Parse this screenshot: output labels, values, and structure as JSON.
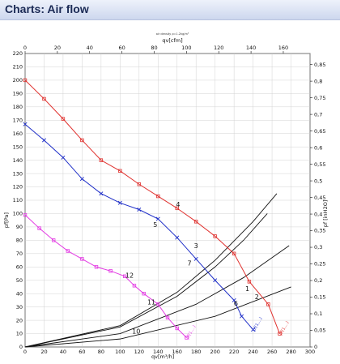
{
  "header": {
    "title": "Charts: Air flow"
  },
  "chart_data": {
    "type": "line",
    "note": "air density ρ=1.2kg/m³",
    "x_top_label": "qv[cfm]",
    "x_top_ticks": [
      0,
      20,
      40,
      60,
      80,
      100,
      120,
      140,
      160
    ],
    "x_bottom_label": "qv[m³/h]",
    "x_ticks": [
      0,
      20,
      40,
      60,
      80,
      100,
      120,
      140,
      160,
      180,
      200,
      220,
      240,
      260,
      280,
      300
    ],
    "y_left_label": "pf[Pa]",
    "y_left_ticks": [
      0,
      10,
      20,
      30,
      40,
      50,
      60,
      70,
      80,
      90,
      100,
      110,
      120,
      130,
      140,
      150,
      160,
      170,
      180,
      190,
      200,
      210,
      220
    ],
    "y_right_label": "pf [inH2O]",
    "y_right_ticks": [
      "0",
      "0,05",
      "0,1",
      "0,15",
      "0,2",
      "0,25",
      "0,3",
      "0,35",
      "0,4",
      "0,45",
      "0,5",
      "0,55",
      "0,6",
      "0,65",
      "0,7",
      "0,75",
      "0,8",
      "0,85"
    ],
    "xlim": [
      0,
      300
    ],
    "ylim": [
      0,
      220
    ],
    "grid": true,
    "colors": {
      "red": "#e0312e",
      "blue": "#1f2fc8",
      "magenta": "#e33be3",
      "black": "#111111"
    },
    "series": [
      {
        "label": "pf(1,…)",
        "color": "#e0312e",
        "marker": "square",
        "x": [
          0,
          20,
          40,
          60,
          80,
          100,
          120,
          140,
          160,
          180,
          200,
          220,
          236,
          256,
          268
        ],
        "y": [
          200,
          186,
          171,
          155,
          140,
          132,
          122,
          113,
          104,
          94,
          83,
          70,
          49,
          32,
          10
        ]
      },
      {
        "label": "pf(1,…)",
        "color": "#1f2fc8",
        "marker": "x",
        "x": [
          0,
          20,
          40,
          60,
          80,
          100,
          120,
          140,
          160,
          180,
          200,
          220,
          228,
          240
        ],
        "y": [
          167,
          155,
          142,
          126,
          115,
          108,
          103,
          96,
          82,
          66,
          50,
          35,
          23,
          13
        ]
      },
      {
        "label": "pf(1,…)",
        "color": "#e33be3",
        "marker": "square",
        "x": [
          0,
          15,
          30,
          45,
          60,
          75,
          90,
          105,
          115,
          125,
          140,
          150,
          160,
          170
        ],
        "y": [
          99,
          89,
          80,
          72,
          66,
          60,
          57,
          53,
          46,
          40,
          32,
          22,
          14,
          7
        ]
      }
    ],
    "system_curves": [
      {
        "x": [
          0,
          100,
          160,
          200,
          230,
          255
        ],
        "y": [
          0,
          15,
          38,
          60,
          80,
          100
        ]
      },
      {
        "x": [
          0,
          100,
          160,
          200,
          240,
          265
        ],
        "y": [
          0,
          16,
          41,
          65,
          94,
          115
        ]
      },
      {
        "x": [
          0,
          100,
          180,
          230,
          278
        ],
        "y": [
          0,
          10,
          32,
          52,
          76
        ]
      },
      {
        "x": [
          0,
          100,
          200,
          280
        ],
        "y": [
          0,
          6,
          23,
          45
        ]
      }
    ],
    "point_labels": [
      {
        "text": "1",
        "x": 234,
        "y": 42
      },
      {
        "text": "2",
        "x": 244,
        "y": 36
      },
      {
        "text": "3",
        "x": 180,
        "y": 74
      },
      {
        "text": "4",
        "x": 161,
        "y": 105
      },
      {
        "text": "5",
        "x": 137,
        "y": 90
      },
      {
        "text": "6",
        "x": 222,
        "y": 31
      },
      {
        "text": "7",
        "x": 173,
        "y": 61
      },
      {
        "text": "10",
        "x": 117,
        "y": 10
      },
      {
        "text": "11",
        "x": 133,
        "y": 32
      },
      {
        "text": "12",
        "x": 110,
        "y": 52
      }
    ]
  }
}
